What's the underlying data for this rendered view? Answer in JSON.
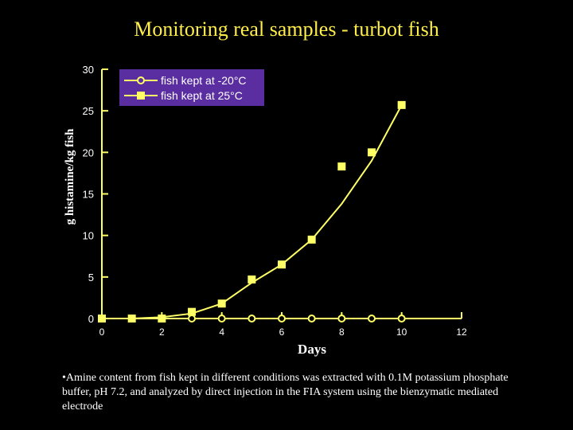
{
  "slide": {
    "title": "Monitoring real samples - turbot fish",
    "caption": "•Amine content from fish kept in different conditions was extracted with 0.1M potassium phosphate buffer, pH 7.2, and analyzed by direct injection in the FIA system using the bienzymatic mediated electrode"
  },
  "colors": {
    "background": "#000000",
    "title": "#ffee4a",
    "series": "#ffff66",
    "legend_bg": "#5a2ea0"
  },
  "chart_data": {
    "type": "scatter",
    "title": "Monitoring real samples - turbot fish",
    "xlabel": "Days",
    "ylabel": "g histamine/kg fish",
    "xlim": [
      0,
      12
    ],
    "ylim": [
      0,
      30
    ],
    "xticks": [
      0,
      2,
      4,
      6,
      8,
      10,
      12
    ],
    "yticks": [
      0,
      5,
      10,
      15,
      20,
      25,
      30
    ],
    "legend_position": "top-right",
    "series": [
      {
        "name": "fish kept at -20°C",
        "marker": "open-circle",
        "x": [
          0,
          1,
          2,
          3,
          4,
          5,
          6,
          7,
          8,
          9,
          10
        ],
        "y": [
          0,
          0,
          0,
          0,
          0,
          0,
          0,
          0,
          0,
          0,
          0
        ]
      },
      {
        "name": "fish kept at 25°C",
        "marker": "filled-square",
        "x": [
          0,
          1,
          2,
          3,
          4,
          5,
          6,
          7,
          8,
          9,
          10
        ],
        "y": [
          0,
          0,
          0,
          0.8,
          1.8,
          4.7,
          6.5,
          9.5,
          18.3,
          20,
          25.7
        ]
      }
    ],
    "trendline": {
      "series": "fish kept at 25°C",
      "x": [
        1,
        2,
        3,
        4,
        5,
        6,
        7,
        8,
        9,
        10
      ],
      "y": [
        0,
        0.15,
        0.6,
        1.8,
        4.3,
        6.5,
        9.5,
        13.8,
        19.0,
        25.7
      ]
    }
  }
}
